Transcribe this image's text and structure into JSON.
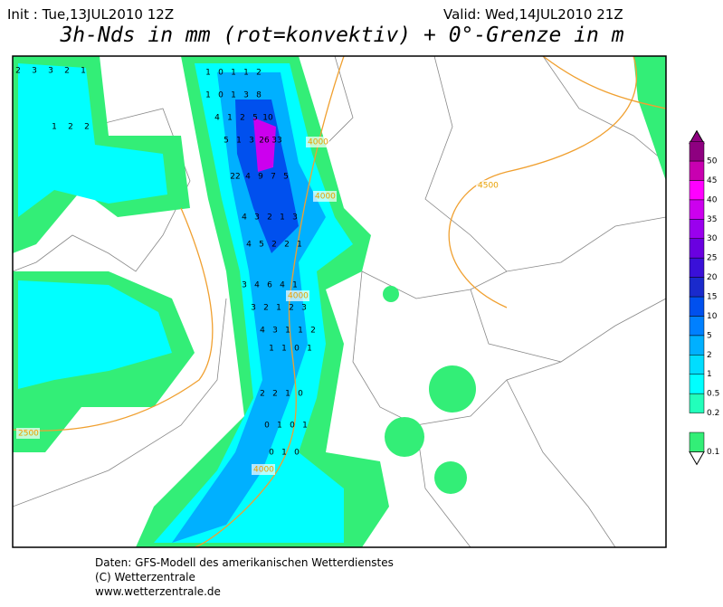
{
  "header": {
    "init": "Init : Tue,13JUL2010 12Z",
    "valid": "Valid: Wed,14JUL2010 21Z",
    "title": "3h-Nds in mm (rot=konvektiv) + 0°-Grenze in m"
  },
  "legend": {
    "levels": [
      0.1,
      0.2,
      0.5,
      1,
      2,
      5,
      10,
      15,
      20,
      25,
      30,
      35,
      40,
      45,
      50
    ],
    "colors": [
      "#33ee77",
      "#22ffbb",
      "#00ffff",
      "#00ddff",
      "#00b0ff",
      "#0080ff",
      "#0050ee",
      "#1a2acc",
      "#3a10d8",
      "#6a00e0",
      "#9a00ee",
      "#cc00ee",
      "#ff00ff",
      "#c800b0",
      "#8e0080"
    ]
  },
  "contour_labels": [
    "4000",
    "4000",
    "4000",
    "4500",
    "2500",
    "4000"
  ],
  "grid_values": [
    2,
    3,
    3,
    2,
    1,
    1,
    2,
    2,
    1,
    0,
    1,
    1,
    2,
    1,
    0,
    1,
    3,
    8,
    4,
    1,
    2,
    5,
    10,
    5,
    1,
    3,
    26,
    33,
    22,
    4,
    9,
    7,
    5,
    4,
    3,
    2,
    1,
    3,
    4,
    5,
    2,
    2,
    1,
    3,
    4,
    6,
    4,
    1,
    3,
    2,
    1,
    2,
    3,
    4,
    3,
    1,
    1,
    2,
    1,
    1,
    0,
    1,
    2,
    2,
    1,
    0,
    0,
    1,
    0,
    1,
    0,
    1,
    0
  ],
  "footer": [
    "Daten: GFS-Modell des amerikanischen Wetterdienstes",
    "(C) Wetterzentrale",
    "www.wetterzentrale.de"
  ]
}
